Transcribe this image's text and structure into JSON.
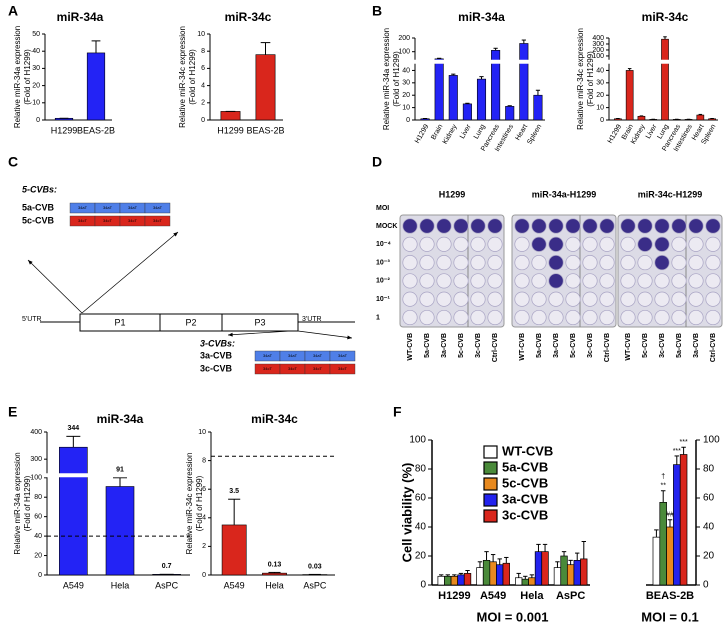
{
  "panel_labels": [
    "A",
    "B",
    "C",
    "D",
    "E",
    "F"
  ],
  "chart_data": [
    {
      "type": "bar",
      "title": "miR-34a",
      "ylabel": [
        "Relative miR-34a expression",
        "(Fold of H1299)"
      ],
      "categories": [
        "H1299",
        "BEAS-2B"
      ],
      "values": [
        1,
        39
      ],
      "errors": [
        0,
        7
      ],
      "color": "#2323f5",
      "ylim": [
        0,
        50
      ],
      "yticks": [
        0,
        10,
        20,
        30,
        40,
        50
      ]
    },
    {
      "type": "bar",
      "title": "miR-34c",
      "ylabel": [
        "Relative miR-34c expression",
        "(Fold of H1299)"
      ],
      "categories": [
        "H1299",
        "BEAS-2B"
      ],
      "values": [
        1,
        7.6
      ],
      "errors": [
        0,
        1.4
      ],
      "color": "#d9261c",
      "ylim": [
        0,
        10
      ],
      "yticks": [
        0,
        2,
        4,
        6,
        8,
        10
      ]
    },
    {
      "type": "bar",
      "title": "miR-34a",
      "ylabel": [
        "Relative miR-34a expression",
        "(Fold of H1299)"
      ],
      "categories": [
        "H1299",
        "Brain",
        "Kidney",
        "Liver",
        "Lung",
        "Pancreas",
        "Intestines",
        "Heart",
        "Spleen"
      ],
      "values": [
        1,
        48,
        36,
        13,
        33,
        110,
        11,
        160,
        20
      ],
      "errors": [
        0.2,
        4,
        1,
        0.5,
        2,
        15,
        0.5,
        25,
        4
      ],
      "color": "#2323f5",
      "ylim": [
        0,
        200
      ],
      "ybreak": [
        45,
        45
      ],
      "yticks": [
        0,
        10,
        20,
        30,
        40,
        100,
        200
      ]
    },
    {
      "type": "bar",
      "title": "miR-34c",
      "ylabel": [
        "Relative miR-34c expression",
        "(Fold of H1299)"
      ],
      "categories": [
        "H1299",
        "Brain",
        "Kidney",
        "Liver",
        "Lung",
        "Pancreas",
        "Intestines",
        "Heart",
        "Spleen"
      ],
      "values": [
        1,
        40,
        3,
        0.5,
        380,
        0.5,
        0.5,
        4,
        1
      ],
      "errors": [
        0.2,
        1.5,
        0.3,
        0.1,
        40,
        0.1,
        0.1,
        0.5,
        0.2
      ],
      "color": "#d9261c",
      "ylim": [
        0,
        400
      ],
      "ybreak": [
        45,
        45
      ],
      "yticks": [
        0,
        10,
        20,
        30,
        40,
        100,
        200,
        300,
        400
      ]
    },
    {
      "type": "bar",
      "title": "miR-34a",
      "ylabel": [
        "Relative miR-34a expression",
        "(Fold of H1299)"
      ],
      "categories": [
        "A549",
        "Hela",
        "AsPC"
      ],
      "values": [
        344,
        91,
        0.7
      ],
      "errors": [
        40,
        15,
        0
      ],
      "color": "#2323f5",
      "ylim": [
        0,
        400
      ],
      "ybreak": [
        100,
        250
      ],
      "yticks": [
        0,
        20,
        40,
        60,
        80,
        100,
        300,
        400
      ],
      "reference_line": 40,
      "data_labels": true
    },
    {
      "type": "bar",
      "title": "miR-34c",
      "ylabel": [
        "Relative miR-34c expression",
        "(Fold of H1299)"
      ],
      "categories": [
        "A549",
        "Hela",
        "AsPC"
      ],
      "values": [
        3.5,
        0.13,
        0.03
      ],
      "errors": [
        1.8,
        0.05,
        0.01
      ],
      "color": "#d9261c",
      "ylim": [
        0,
        10
      ],
      "yticks": [
        0,
        2,
        4,
        6,
        8,
        10
      ],
      "reference_line": 8.3,
      "data_labels": true
    },
    {
      "type": "grouped_bar",
      "ylabel": "Cell viability (%)",
      "categories": [
        "H1299",
        "A549",
        "Hela",
        "AsPC",
        "BEAS-2B"
      ],
      "category_axis": [
        "y",
        "y",
        "y",
        "y",
        "y2"
      ],
      "series": [
        {
          "name": "WT-CVB",
          "color": "#ffffff",
          "values": [
            6,
            12,
            5,
            12,
            33
          ],
          "errors": [
            1,
            4,
            3,
            4,
            5
          ]
        },
        {
          "name": "5a-CVB",
          "color": "#4a8a3a",
          "values": [
            6,
            17,
            4,
            20,
            57
          ],
          "errors": [
            1,
            6,
            2,
            3,
            8
          ]
        },
        {
          "name": "5c-CVB",
          "color": "#e8891e",
          "values": [
            6,
            16,
            5,
            14,
            40
          ],
          "errors": [
            1,
            5,
            2,
            3,
            5
          ]
        },
        {
          "name": "3a-CVB",
          "color": "#2222ee",
          "values": [
            7,
            14,
            23,
            17,
            83
          ],
          "errors": [
            1,
            4,
            5,
            5,
            6
          ]
        },
        {
          "name": "3c-CVB",
          "color": "#d9261c",
          "values": [
            8,
            15,
            23,
            18,
            90
          ],
          "errors": [
            2,
            4,
            5,
            12,
            5
          ]
        }
      ],
      "ylim": [
        0,
        100
      ],
      "yticks": [
        0,
        20,
        40,
        60,
        80,
        100
      ],
      "y2lim": [
        0,
        100
      ],
      "y2ticks": [
        0,
        20,
        40,
        60,
        80,
        100
      ],
      "group_labels": [
        "MOI = 0.001",
        "MOI = 0.1"
      ],
      "annotations": [
        "**",
        "##",
        "†",
        "***",
        "***"
      ]
    }
  ],
  "diagram": {
    "five_prime_title": "5-CVBs:",
    "five_prime_constructs": [
      "5a-CVB",
      "5c-CVB"
    ],
    "three_prime_title": "3-CVBs:",
    "three_prime_constructs": [
      "3a-CVB",
      "3c-CVB"
    ],
    "target_labels": [
      "34aT",
      "34cT"
    ],
    "genome": [
      "5'UTR",
      "P1",
      "P2",
      "P3",
      "3'UTR"
    ]
  },
  "plate_assay": {
    "titles": [
      "H1299",
      "miR-34a-H1299",
      "miR-34c-H1299"
    ],
    "row_header": "MOI",
    "rows": [
      "MOCK",
      "10⁻⁴",
      "10⁻³",
      "10⁻²",
      "10⁻¹",
      "1"
    ],
    "columns": [
      [
        "WT-CVB",
        "5a-CVB",
        "3a-CVB",
        "5c-CVB",
        "3c-CVB",
        "Ctrl-CVB"
      ],
      [
        "WT-CVB",
        "5a-CVB",
        "3a-CVB",
        "5c-CVB",
        "3c-CVB",
        "Ctrl-CVB"
      ],
      [
        "WT-CVB",
        "5c-CVB",
        "3c-CVB",
        "5a-CVB",
        "3a-CVB",
        "Ctrl-CVB"
      ]
    ]
  }
}
